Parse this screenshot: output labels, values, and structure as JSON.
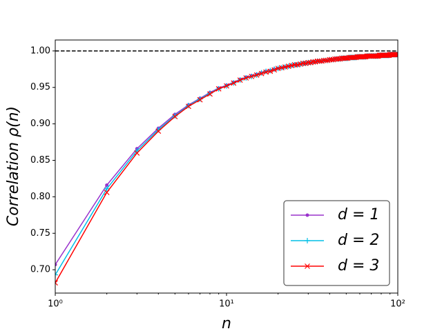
{
  "chart_data": {
    "type": "line",
    "x": [
      1,
      2,
      3,
      4,
      5,
      6,
      7,
      8,
      9,
      10,
      11,
      12,
      13,
      14,
      15,
      16,
      17,
      18,
      19,
      20,
      21,
      22,
      23,
      24,
      25,
      26,
      27,
      28,
      29,
      30,
      31,
      32,
      33,
      34,
      35,
      36,
      37,
      38,
      39,
      40,
      41,
      42,
      43,
      44,
      45,
      46,
      47,
      48,
      49,
      50,
      51,
      52,
      53,
      54,
      55,
      56,
      57,
      58,
      59,
      60,
      61,
      62,
      63,
      64,
      65,
      66,
      67,
      68,
      69,
      70,
      71,
      72,
      73,
      74,
      75,
      76,
      77,
      78,
      79,
      80,
      81,
      82,
      83,
      84,
      85,
      86,
      87,
      88,
      89,
      90,
      91,
      92,
      93,
      94,
      95,
      96,
      97,
      98,
      99,
      100
    ],
    "series": [
      {
        "name": "d = 1",
        "color": "#9932cc",
        "marker": "dot",
        "values": [
          0.707,
          0.816,
          0.866,
          0.894,
          0.913,
          0.926,
          0.935,
          0.943,
          0.949,
          0.953,
          0.957,
          0.961,
          0.964,
          0.966,
          0.968,
          0.97,
          0.972,
          0.973,
          0.975,
          0.976,
          0.977,
          0.978,
          0.979,
          0.98,
          0.981,
          0.981,
          0.982,
          0.983,
          0.983,
          0.984,
          0.984,
          0.985,
          0.985,
          0.986,
          0.986,
          0.986,
          0.987,
          0.987,
          0.987,
          0.988,
          0.988,
          0.988,
          0.989,
          0.989,
          0.989,
          0.989,
          0.99,
          0.99,
          0.99,
          0.99,
          0.99,
          0.991,
          0.991,
          0.991,
          0.991,
          0.991,
          0.991,
          0.992,
          0.992,
          0.992,
          0.992,
          0.992,
          0.992,
          0.992,
          0.992,
          0.993,
          0.993,
          0.993,
          0.993,
          0.993,
          0.993,
          0.993,
          0.993,
          0.993,
          0.993,
          0.993,
          0.993,
          0.994,
          0.994,
          0.994,
          0.994,
          0.994,
          0.994,
          0.994,
          0.994,
          0.994,
          0.994,
          0.994,
          0.994,
          0.995,
          0.995,
          0.995,
          0.995,
          0.995,
          0.995,
          0.995,
          0.995,
          0.995,
          0.995,
          0.995
        ]
      },
      {
        "name": "d = 2",
        "color": "#00bfe6",
        "marker": "plus",
        "values": [
          0.693,
          0.811,
          0.863,
          0.892,
          0.911,
          0.925,
          0.934,
          0.942,
          0.948,
          0.952,
          0.956,
          0.96,
          0.963,
          0.965,
          0.967,
          0.97,
          0.972,
          0.973,
          0.975,
          0.976,
          0.977,
          0.978,
          0.979,
          0.98,
          0.981,
          0.981,
          0.982,
          0.983,
          0.983,
          0.984,
          0.984,
          0.985,
          0.985,
          0.986,
          0.986,
          0.986,
          0.987,
          0.987,
          0.987,
          0.988,
          0.988,
          0.988,
          0.989,
          0.989,
          0.989,
          0.989,
          0.99,
          0.99,
          0.99,
          0.99,
          0.99,
          0.991,
          0.991,
          0.991,
          0.991,
          0.991,
          0.991,
          0.992,
          0.992,
          0.992,
          0.992,
          0.992,
          0.992,
          0.992,
          0.992,
          0.993,
          0.993,
          0.993,
          0.993,
          0.993,
          0.993,
          0.993,
          0.993,
          0.993,
          0.993,
          0.993,
          0.993,
          0.994,
          0.994,
          0.994,
          0.994,
          0.994,
          0.994,
          0.994,
          0.994,
          0.994,
          0.994,
          0.994,
          0.994,
          0.995,
          0.995,
          0.995,
          0.995,
          0.995,
          0.995,
          0.995,
          0.995,
          0.995,
          0.995,
          0.995
        ]
      },
      {
        "name": "d = 3",
        "color": "#ff0000",
        "marker": "x",
        "values": [
          0.682,
          0.806,
          0.86,
          0.89,
          0.91,
          0.924,
          0.933,
          0.941,
          0.948,
          0.952,
          0.956,
          0.96,
          0.963,
          0.965,
          0.967,
          0.969,
          0.971,
          0.972,
          0.974,
          0.976,
          0.977,
          0.978,
          0.979,
          0.98,
          0.981,
          0.981,
          0.982,
          0.983,
          0.983,
          0.984,
          0.984,
          0.985,
          0.985,
          0.986,
          0.986,
          0.986,
          0.987,
          0.987,
          0.987,
          0.988,
          0.988,
          0.988,
          0.989,
          0.989,
          0.989,
          0.989,
          0.99,
          0.99,
          0.99,
          0.99,
          0.99,
          0.991,
          0.991,
          0.991,
          0.991,
          0.991,
          0.991,
          0.992,
          0.992,
          0.992,
          0.992,
          0.992,
          0.992,
          0.992,
          0.992,
          0.993,
          0.993,
          0.993,
          0.993,
          0.993,
          0.993,
          0.993,
          0.993,
          0.993,
          0.993,
          0.993,
          0.993,
          0.994,
          0.994,
          0.994,
          0.994,
          0.994,
          0.994,
          0.994,
          0.994,
          0.994,
          0.994,
          0.994,
          0.994,
          0.995,
          0.995,
          0.995,
          0.995,
          0.995,
          0.995,
          0.995,
          0.995,
          0.995,
          0.995,
          0.995
        ]
      }
    ],
    "x_label": "n",
    "y_label": "Correlation ρ(n)",
    "xscale": "log",
    "xlim": [
      1,
      100
    ],
    "xticks": [
      {
        "value": 1,
        "label": "10⁰"
      },
      {
        "value": 10,
        "label": "10¹"
      },
      {
        "value": 100,
        "label": "10²"
      }
    ],
    "ylim": [
      0.668,
      1.015
    ],
    "yticks": [
      {
        "value": 0.7,
        "label": "0.70"
      },
      {
        "value": 0.75,
        "label": "0.75"
      },
      {
        "value": 0.8,
        "label": "0.80"
      },
      {
        "value": 0.85,
        "label": "0.85"
      },
      {
        "value": 0.9,
        "label": "0.90"
      },
      {
        "value": 0.95,
        "label": "0.95"
      },
      {
        "value": 1.0,
        "label": "1.00"
      }
    ],
    "reference_line": 1.0,
    "legend": "lower right"
  }
}
